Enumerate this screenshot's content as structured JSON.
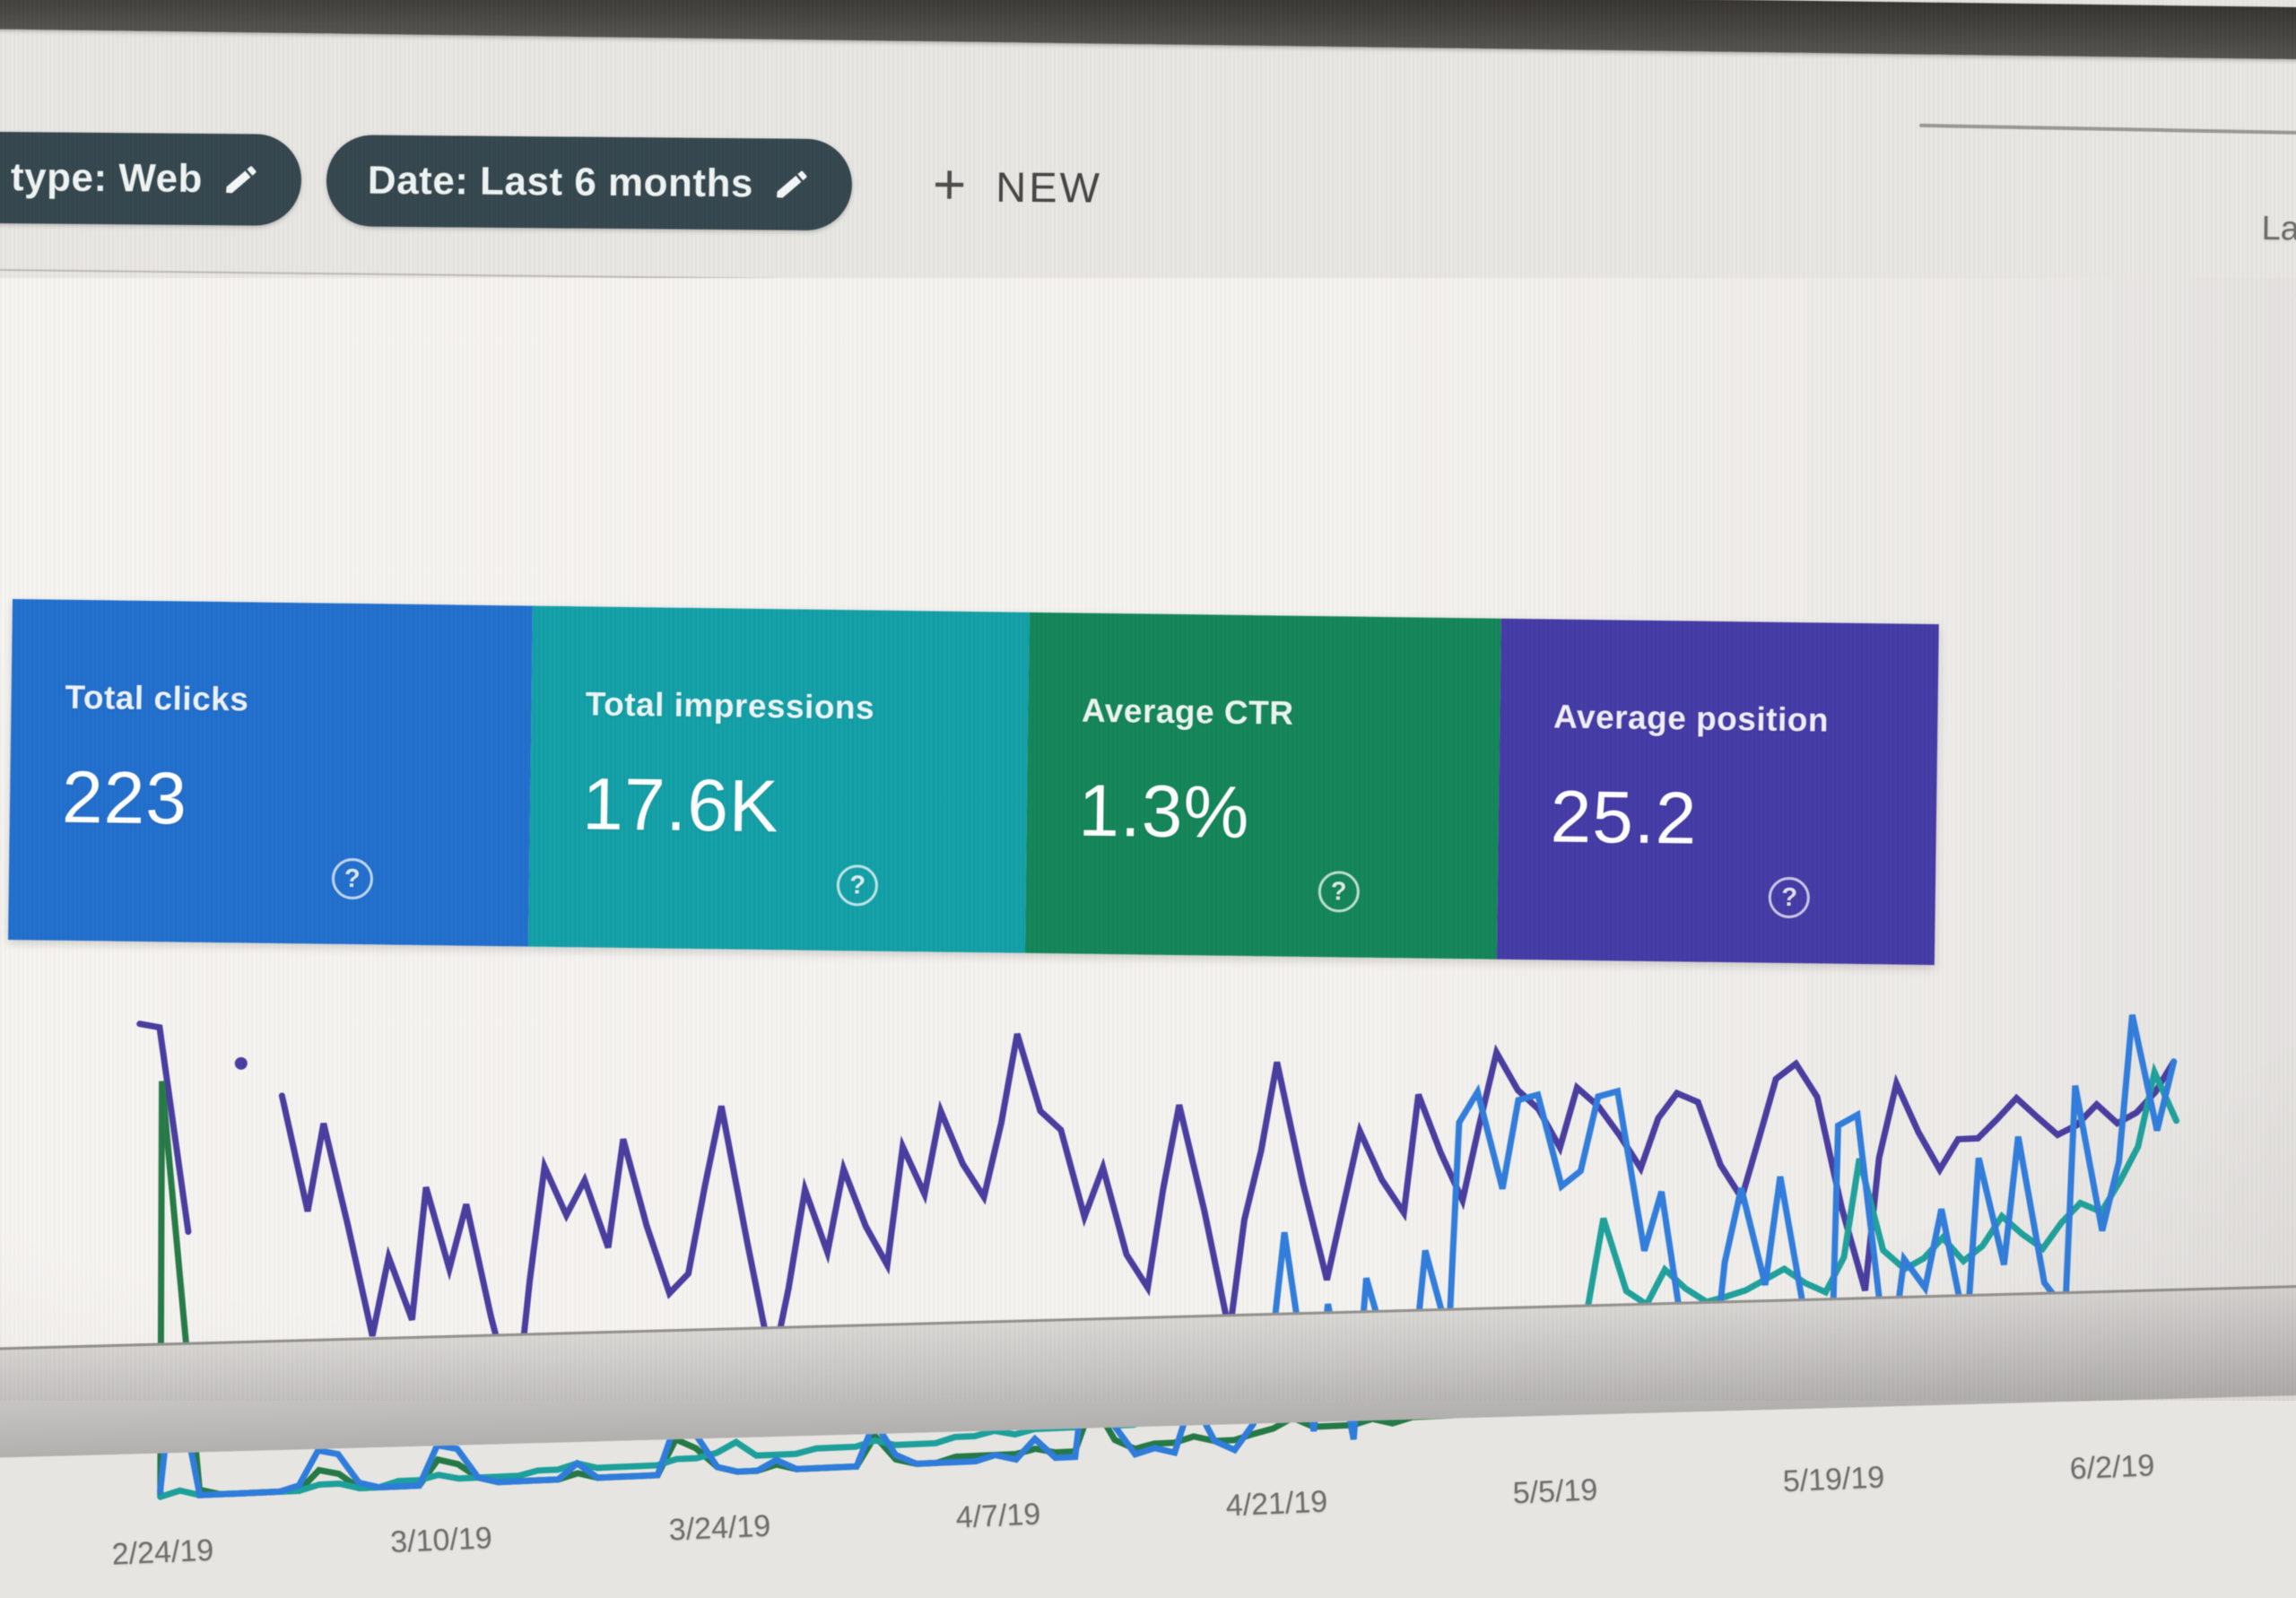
{
  "window": {
    "top_right_partial_text": "La"
  },
  "toolbar": {
    "type_chip": {
      "label": "type: Web",
      "icon": "pencil-icon"
    },
    "date_chip": {
      "label": "Date: Last 6 months",
      "icon": "pencil-icon"
    },
    "new_button": {
      "plus": "+",
      "label": "NEW"
    }
  },
  "cards": [
    {
      "label": "Total clicks",
      "value": "223",
      "color": "#1c6ed2",
      "help_icon": "?"
    },
    {
      "label": "Total impressions",
      "value": "17.6K",
      "color": "#0ba0a8",
      "help_icon": "?"
    },
    {
      "label": "Average CTR",
      "value": "1.3%",
      "color": "#0d8557",
      "help_icon": "?"
    },
    {
      "label": "Average position",
      "value": "25.2",
      "color": "#4238aa",
      "help_icon": "?"
    }
  ],
  "chart_data": {
    "type": "line",
    "title": "",
    "xlabel": "",
    "ylabel": "",
    "grid": false,
    "legend": "none (card colors act as legend)",
    "x_unit": "day index starting 2/24/19",
    "x_labels": [
      "2/24/19",
      "3/10/19",
      "3/24/19",
      "4/7/19",
      "4/21/19",
      "5/5/19",
      "5/19/19",
      "6/2/19"
    ],
    "x_label_days": [
      0,
      14,
      28,
      42,
      56,
      70,
      84,
      98
    ],
    "ylim": [
      0,
      100
    ],
    "y_note": "values are estimated percent of plot height (no visible y axis in UI)",
    "series": [
      {
        "key": "position",
        "name": "Average position",
        "color": "#473aa3",
        "values": [
          98,
          97,
          55,
          null,
          null,
          89,
          null,
          82,
          58,
          76,
          55,
          32,
          48,
          35,
          62,
          45,
          58,
          35,
          15,
          42,
          65,
          55,
          62,
          48,
          70,
          52,
          38,
          42,
          60,
          76,
          48,
          22,
          38,
          58,
          45,
          62,
          50,
          42,
          66,
          56,
          73,
          62,
          55,
          70,
          88,
          72,
          68,
          50,
          60,
          42,
          35,
          55,
          72,
          50,
          25,
          48,
          62,
          80,
          55,
          35,
          50,
          65,
          55,
          48,
          72,
          60,
          50,
          65,
          80,
          72,
          68,
          60,
          72,
          68,
          62,
          55,
          65,
          70,
          68,
          55,
          48,
          60,
          72,
          75,
          68,
          45,
          28,
          55,
          70,
          60,
          52,
          58,
          58,
          62,
          66,
          62,
          58,
          60,
          64,
          60,
          62,
          66,
          72
        ]
      },
      {
        "key": "ctr",
        "name": "Average CTR",
        "color": "#217a43",
        "values": [
          1,
          86,
          2,
          1,
          1,
          1,
          1,
          1,
          5,
          4,
          1,
          1,
          1,
          1,
          6,
          5,
          2,
          1,
          1,
          1,
          1,
          2,
          1,
          1,
          1,
          1,
          8,
          6,
          2,
          1,
          1,
          2,
          1,
          1,
          1,
          1,
          7,
          2,
          1,
          1,
          2,
          2,
          2,
          2,
          3,
          2,
          2,
          12,
          4,
          2,
          3,
          3,
          4,
          3,
          3,
          4,
          5,
          7,
          5,
          5,
          5,
          6,
          5,
          6,
          6,
          6,
          7,
          7,
          6,
          7,
          7,
          7,
          7,
          8,
          7,
          7,
          8,
          8,
          7,
          8,
          8,
          9,
          9,
          8,
          12,
          10,
          9,
          9,
          9,
          10,
          10,
          9,
          10,
          10,
          10,
          10,
          10,
          11,
          10,
          11,
          12,
          12,
          12
        ]
      },
      {
        "key": "impressions",
        "name": "Total impressions",
        "color": "#18a19c",
        "values": [
          1,
          2,
          1,
          1,
          1,
          1,
          1,
          1,
          2,
          2,
          1,
          1,
          2,
          2,
          3,
          2,
          2,
          2,
          2,
          3,
          3,
          4,
          3,
          3,
          3,
          3,
          4,
          4,
          5,
          7,
          4,
          4,
          4,
          5,
          5,
          5,
          6,
          5,
          5,
          5,
          6,
          6,
          7,
          6,
          7,
          7,
          7,
          9,
          7,
          7,
          8,
          8,
          10,
          9,
          8,
          10,
          13,
          16,
          12,
          14,
          15,
          17,
          16,
          19,
          18,
          20,
          22,
          23,
          21,
          24,
          25,
          24,
          26,
          45,
          30,
          27,
          34,
          30,
          27,
          28,
          29,
          31,
          33,
          30,
          28,
          35,
          55,
          36,
          32,
          34,
          38,
          33,
          36,
          42,
          38,
          35,
          40,
          44,
          42,
          48,
          55,
          70,
          60
        ]
      },
      {
        "key": "clicks",
        "name": "Total clicks",
        "color": "#2b7de0",
        "values": [
          2,
          28,
          1,
          1,
          1,
          1,
          1,
          2,
          9,
          8,
          2,
          1,
          1,
          1,
          9,
          8,
          2,
          1,
          1,
          1,
          1,
          4,
          1,
          1,
          1,
          1,
          11,
          9,
          2,
          1,
          1,
          3,
          1,
          1,
          1,
          1,
          10,
          3,
          1,
          1,
          1,
          1,
          2,
          1,
          5,
          1,
          1,
          26,
          7,
          1,
          2,
          1,
          12,
          3,
          1,
          6,
          19,
          45,
          4,
          30,
          2,
          35,
          18,
          12,
          40,
          22,
          66,
          72,
          52,
          70,
          71,
          52,
          55,
          70,
          71,
          38,
          50,
          12,
          8,
          35,
          50,
          30,
          52,
          20,
          5,
          62,
          64,
          10,
          34,
          28,
          44,
          18,
          54,
          32,
          58,
          28,
          22,
          68,
          38,
          52,
          82,
          58,
          72
        ]
      }
    ]
  }
}
